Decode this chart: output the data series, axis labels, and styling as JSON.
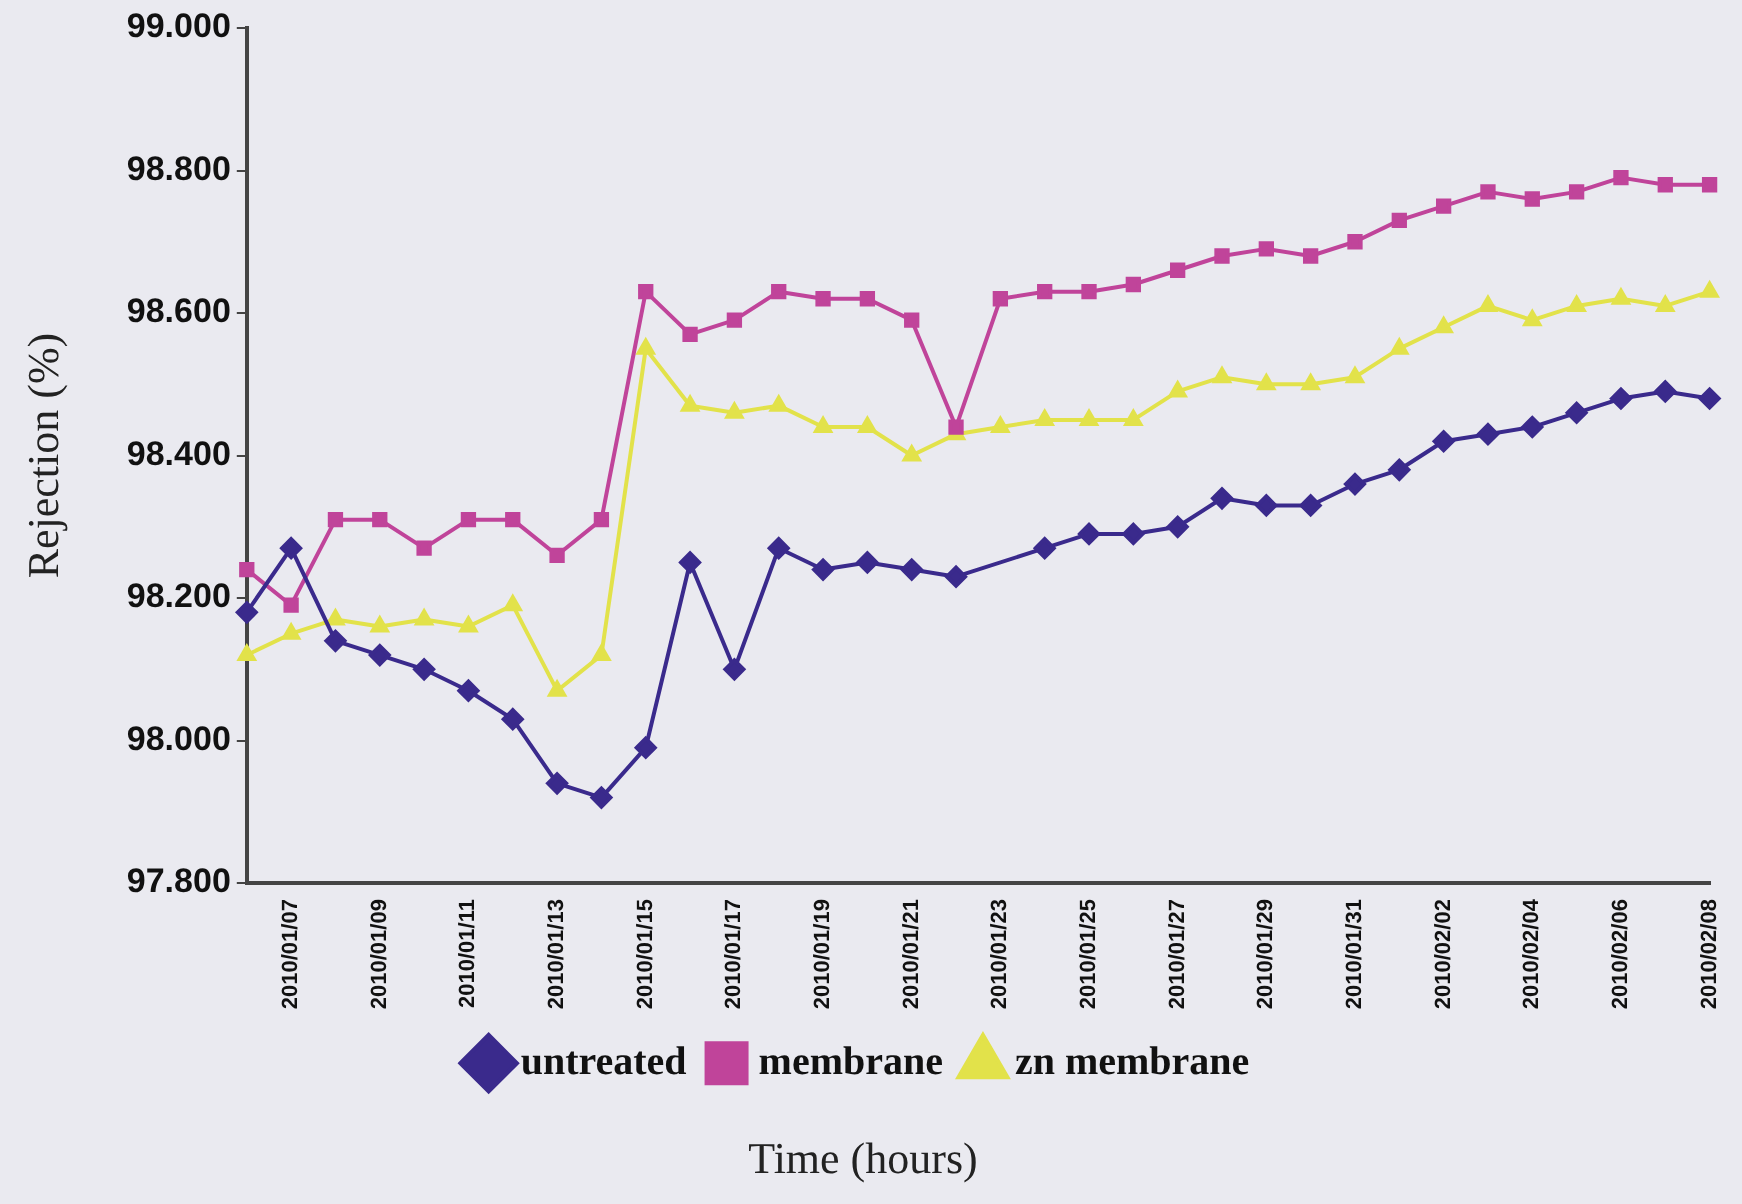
{
  "chart_data": {
    "type": "line",
    "xlabel": "Time (hours)",
    "ylabel": "Rejection (%)",
    "categories": [
      null,
      "2010/01/07",
      null,
      "2010/01/09",
      null,
      "2010/01/11",
      null,
      "2010/01/13",
      null,
      "2010/01/15",
      null,
      "2010/01/17",
      null,
      "2010/01/19",
      null,
      "2010/01/21",
      null,
      "2010/01/23",
      null,
      "2010/01/25",
      null,
      "2010/01/27",
      null,
      "2010/01/29",
      null,
      "2010/01/31",
      null,
      "2010/02/02",
      null,
      "2010/02/04",
      null,
      "2010/02/06",
      null,
      "2010/02/08"
    ],
    "series": [
      {
        "name": "untreated",
        "color": "#3a2a8c",
        "marker": "diamond",
        "values": [
          98.18,
          98.27,
          98.14,
          98.12,
          98.1,
          98.07,
          98.03,
          97.94,
          97.92,
          97.99,
          98.25,
          98.1,
          98.27,
          98.24,
          98.25,
          98.24,
          98.23,
          null,
          98.27,
          98.29,
          98.29,
          98.3,
          98.34,
          98.33,
          98.33,
          98.36,
          98.38,
          98.42,
          98.43,
          98.44,
          98.46,
          98.48,
          98.49,
          98.48
        ]
      },
      {
        "name": "membrane",
        "color": "#c0449a",
        "marker": "square",
        "values": [
          98.24,
          98.19,
          98.31,
          98.31,
          98.27,
          98.31,
          98.31,
          98.26,
          98.31,
          98.63,
          98.57,
          98.59,
          98.63,
          98.62,
          98.62,
          98.59,
          98.44,
          98.62,
          98.63,
          98.63,
          98.64,
          98.66,
          98.68,
          98.69,
          98.68,
          98.7,
          98.73,
          98.75,
          98.77,
          98.76,
          98.77,
          98.79,
          98.78,
          98.78
        ]
      },
      {
        "name": "zn membrane",
        "color": "#e2e24a",
        "marker": "triangle",
        "values": [
          98.12,
          98.15,
          98.17,
          98.16,
          98.17,
          98.16,
          98.19,
          98.07,
          98.12,
          98.55,
          98.47,
          98.46,
          98.47,
          98.44,
          98.44,
          98.4,
          98.43,
          98.44,
          98.45,
          98.45,
          98.45,
          98.49,
          98.51,
          98.5,
          98.5,
          98.51,
          98.55,
          98.58,
          98.61,
          98.59,
          98.61,
          98.62,
          98.61,
          98.63
        ]
      }
    ],
    "ylim": [
      97.8,
      99
    ],
    "yticks": [
      {
        "value": 97.8,
        "label": "97.800"
      },
      {
        "value": 98,
        "label": "98.000"
      },
      {
        "value": 98.2,
        "label": "98.200"
      },
      {
        "value": 98.4,
        "label": "98.400"
      },
      {
        "value": 98.6,
        "label": "98.600"
      },
      {
        "value": 98.8,
        "label": "98.800"
      },
      {
        "value": 99,
        "label": "99.000"
      }
    ],
    "grid": false,
    "legend": "bottom"
  }
}
